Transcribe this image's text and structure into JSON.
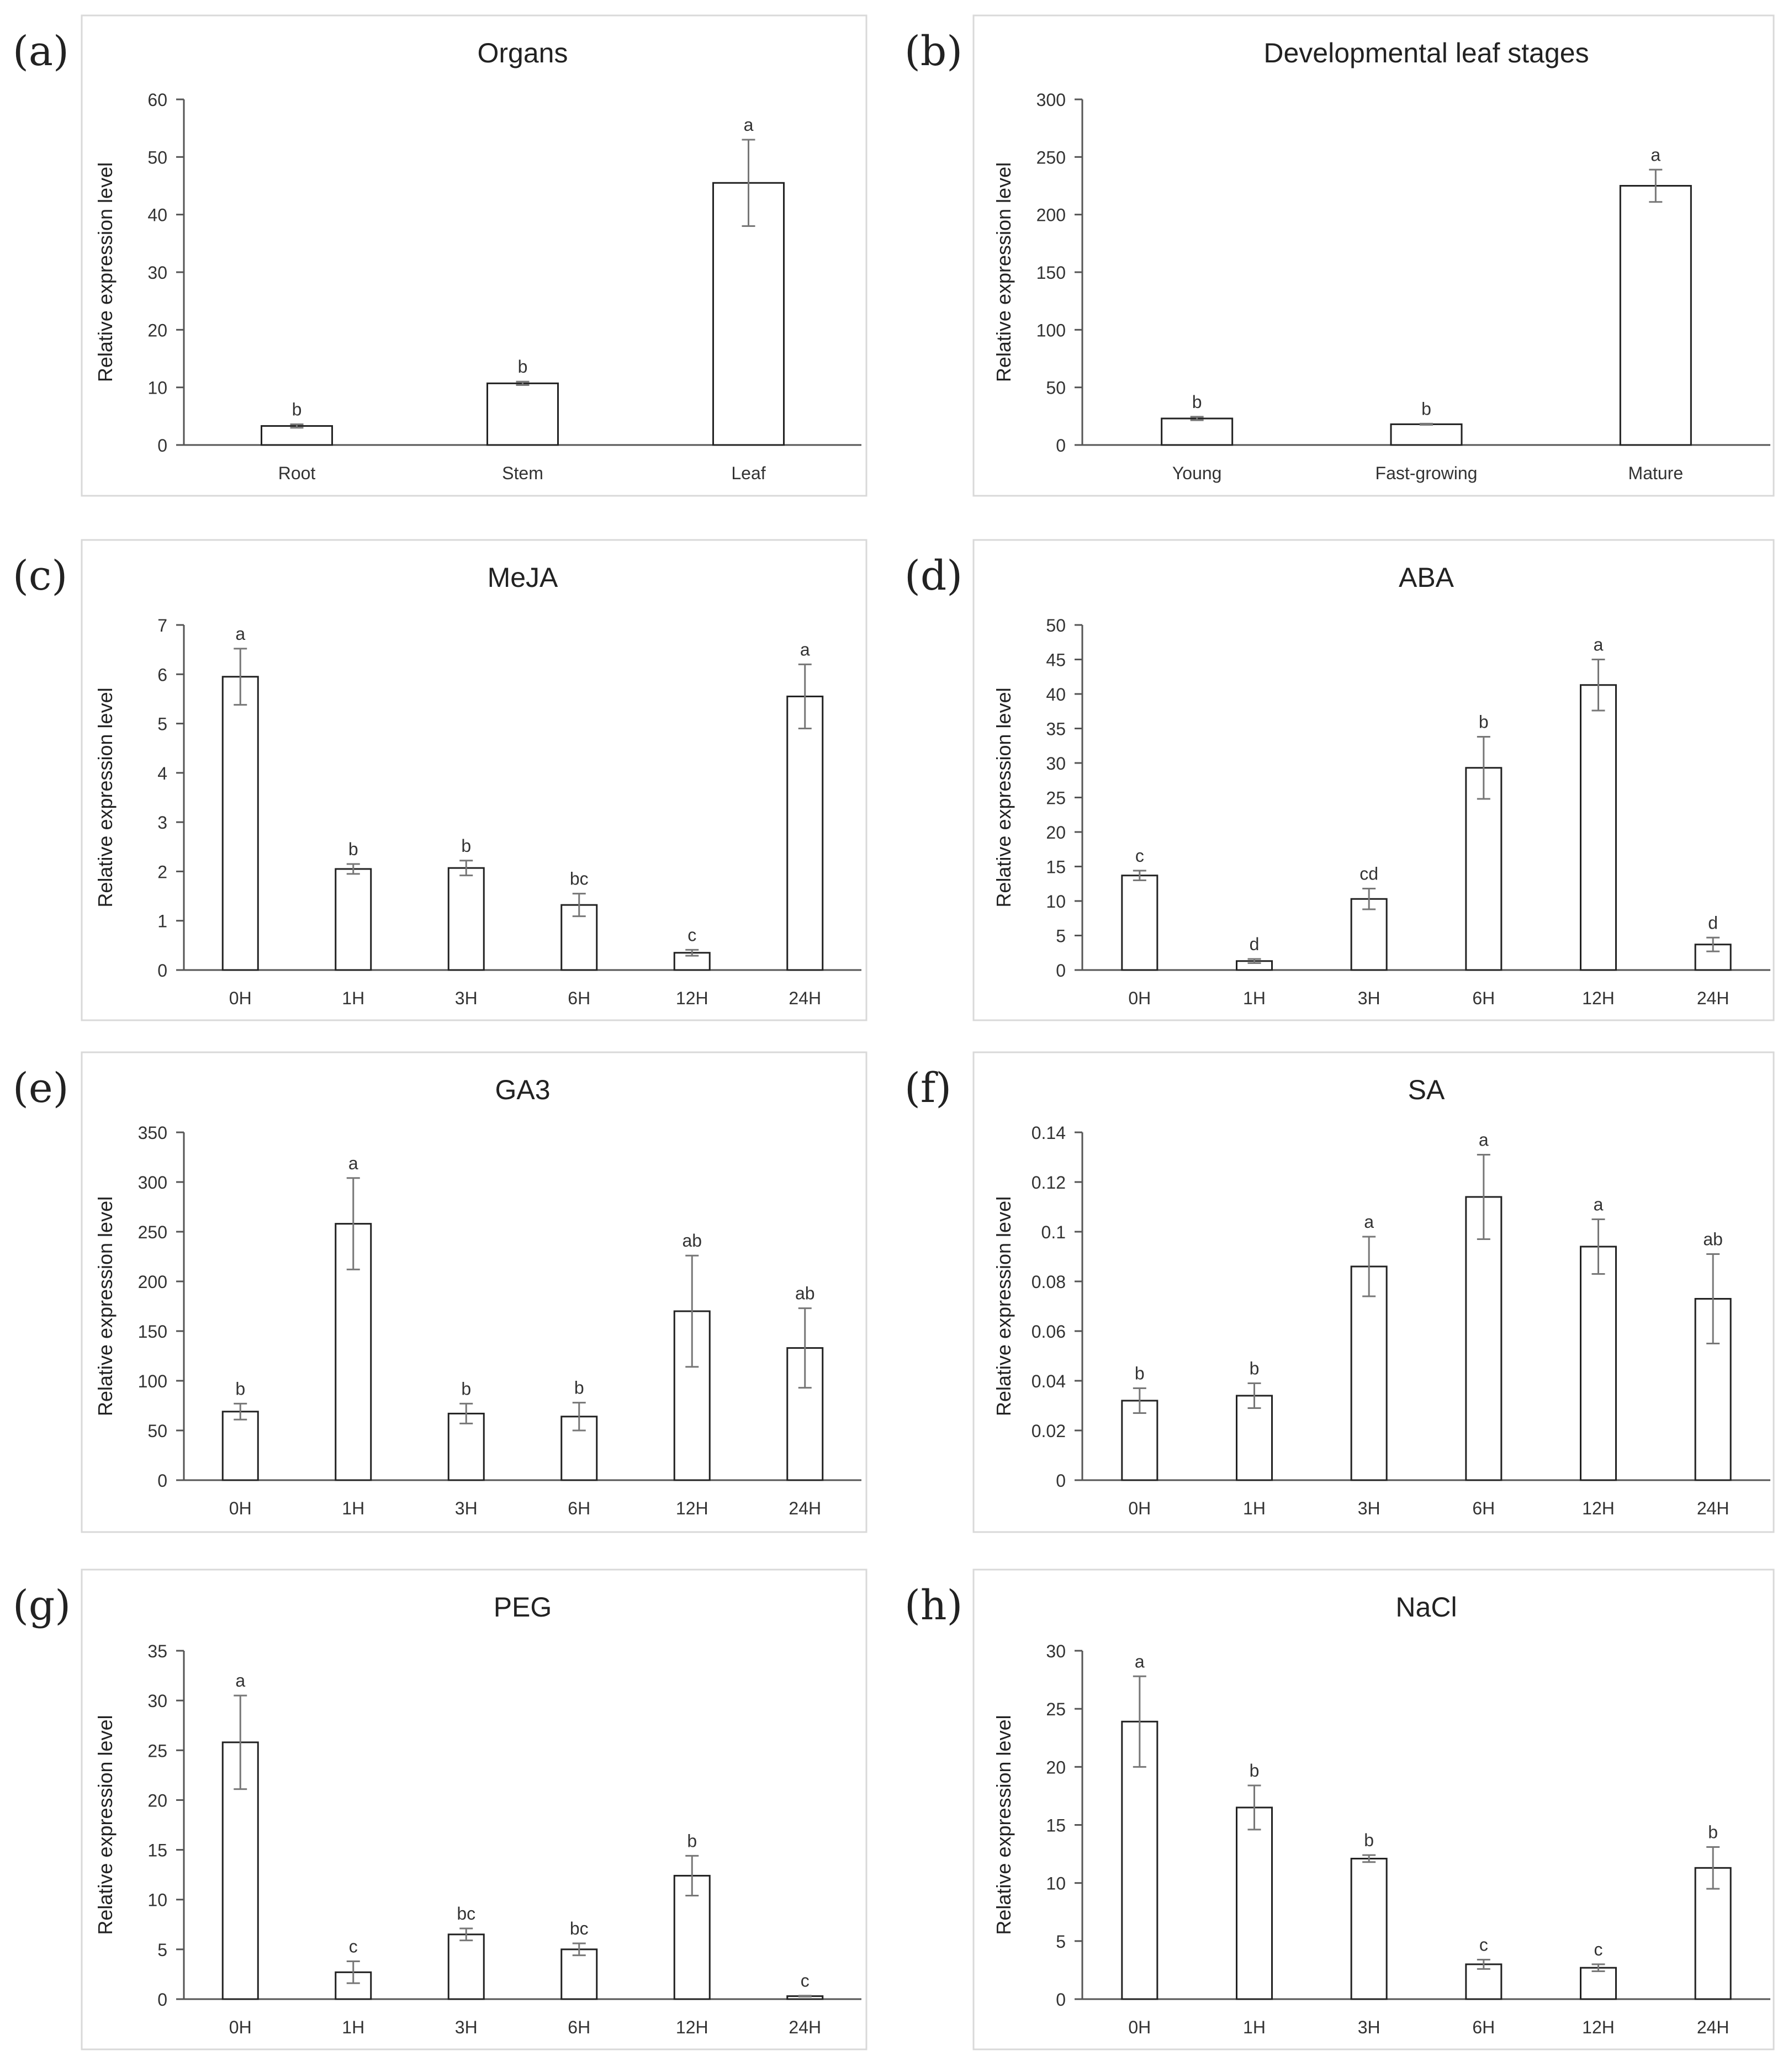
{
  "figure": {
    "ylabel": "Relative expression level"
  },
  "chart_data": [
    {
      "type": "bar",
      "panel": "(a)",
      "title": "Organs",
      "categories": [
        "Root",
        "Stem",
        "Leaf"
      ],
      "values": [
        3.3,
        10.7,
        45.5
      ],
      "errors": [
        0.3,
        0.3,
        7.5
      ],
      "letters": [
        "b",
        "b",
        "a"
      ],
      "ylim": [
        0,
        60
      ],
      "yticks": [
        "0",
        "10",
        "20",
        "30",
        "40",
        "50",
        "60"
      ],
      "ylabel": "Relative expression level",
      "xlabel": ""
    },
    {
      "type": "bar",
      "panel": "(b)",
      "title": "Developmental leaf stages",
      "categories": [
        "Young",
        "Fast-growing",
        "Mature"
      ],
      "values": [
        23,
        18,
        225
      ],
      "errors": [
        1.5,
        0.5,
        14
      ],
      "letters": [
        "b",
        "b",
        "a"
      ],
      "ylim": [
        0,
        300
      ],
      "yticks": [
        "0",
        "50",
        "100",
        "150",
        "200",
        "250",
        "300"
      ],
      "ylabel": "Relative expression level",
      "xlabel": ""
    },
    {
      "type": "bar",
      "panel": "(c)",
      "title": "MeJA",
      "categories": [
        "0H",
        "1H",
        "3H",
        "6H",
        "12H",
        "24H"
      ],
      "values": [
        5.95,
        2.05,
        2.07,
        1.32,
        0.35,
        5.55
      ],
      "errors": [
        0.57,
        0.1,
        0.15,
        0.23,
        0.06,
        0.65
      ],
      "letters": [
        "a",
        "b",
        "b",
        "bc",
        "c",
        "a"
      ],
      "ylim": [
        0,
        7
      ],
      "yticks": [
        "0",
        "1",
        "2",
        "3",
        "4",
        "5",
        "6",
        "7"
      ],
      "ylabel": "Relative expression level",
      "xlabel": ""
    },
    {
      "type": "bar",
      "panel": "(d)",
      "title": "ABA",
      "categories": [
        "0H",
        "1H",
        "3H",
        "6H",
        "12H",
        "24H"
      ],
      "values": [
        13.7,
        1.3,
        10.3,
        29.3,
        41.3,
        3.7
      ],
      "errors": [
        0.7,
        0.3,
        1.5,
        4.5,
        3.7,
        1.0
      ],
      "letters": [
        "c",
        "d",
        "cd",
        "b",
        "a",
        "d"
      ],
      "ylim": [
        0,
        50
      ],
      "yticks": [
        "0",
        "5",
        "10",
        "15",
        "20",
        "25",
        "30",
        "35",
        "40",
        "45",
        "50"
      ],
      "ylabel": "Relative expression level",
      "xlabel": ""
    },
    {
      "type": "bar",
      "panel": "(e)",
      "title": "GA3",
      "categories": [
        "0H",
        "1H",
        "3H",
        "6H",
        "12H",
        "24H"
      ],
      "values": [
        69,
        258,
        67,
        64,
        170,
        133
      ],
      "errors": [
        8,
        46,
        10,
        14,
        56,
        40
      ],
      "letters": [
        "b",
        "a",
        "b",
        "b",
        "ab",
        "ab"
      ],
      "ylim": [
        0,
        350
      ],
      "yticks": [
        "0",
        "50",
        "100",
        "150",
        "200",
        "250",
        "300",
        "350"
      ],
      "ylabel": "Relative expression level",
      "xlabel": ""
    },
    {
      "type": "bar",
      "panel": "(f)",
      "title": "SA",
      "categories": [
        "0H",
        "1H",
        "3H",
        "6H",
        "12H",
        "24H"
      ],
      "values": [
        0.032,
        0.034,
        0.086,
        0.114,
        0.094,
        0.073
      ],
      "errors": [
        0.005,
        0.005,
        0.012,
        0.017,
        0.011,
        0.018
      ],
      "letters": [
        "b",
        "b",
        "a",
        "a",
        "a",
        "ab"
      ],
      "ylim": [
        0,
        0.14
      ],
      "yticks": [
        "0",
        "0.02",
        "0.04",
        "0.06",
        "0.08",
        "0.1",
        "0.12",
        "0.14"
      ],
      "ylabel": "Relative expression level",
      "xlabel": ""
    },
    {
      "type": "bar",
      "panel": "(g)",
      "title": "PEG",
      "categories": [
        "0H",
        "1H",
        "3H",
        "6H",
        "12H",
        "24H"
      ],
      "values": [
        25.8,
        2.7,
        6.5,
        5.0,
        12.4,
        0.3
      ],
      "errors": [
        4.7,
        1.1,
        0.6,
        0.6,
        2.0,
        0.05
      ],
      "letters": [
        "a",
        "c",
        "bc",
        "bc",
        "b",
        "c"
      ],
      "ylim": [
        0,
        35
      ],
      "yticks": [
        "0",
        "5",
        "10",
        "15",
        "20",
        "25",
        "30",
        "35"
      ],
      "ylabel": "Relative expression level",
      "xlabel": ""
    },
    {
      "type": "bar",
      "panel": "(h)",
      "title": "NaCl",
      "categories": [
        "0H",
        "1H",
        "3H",
        "6H",
        "12H",
        "24H"
      ],
      "values": [
        23.9,
        16.5,
        12.1,
        3.0,
        2.7,
        11.3
      ],
      "errors": [
        3.9,
        1.9,
        0.3,
        0.4,
        0.3,
        1.8
      ],
      "letters": [
        "a",
        "b",
        "b",
        "c",
        "c",
        "b"
      ],
      "ylim": [
        0,
        30
      ],
      "yticks": [
        "0",
        "5",
        "10",
        "15",
        "20",
        "25",
        "30"
      ],
      "ylabel": "Relative expression level",
      "xlabel": ""
    }
  ]
}
